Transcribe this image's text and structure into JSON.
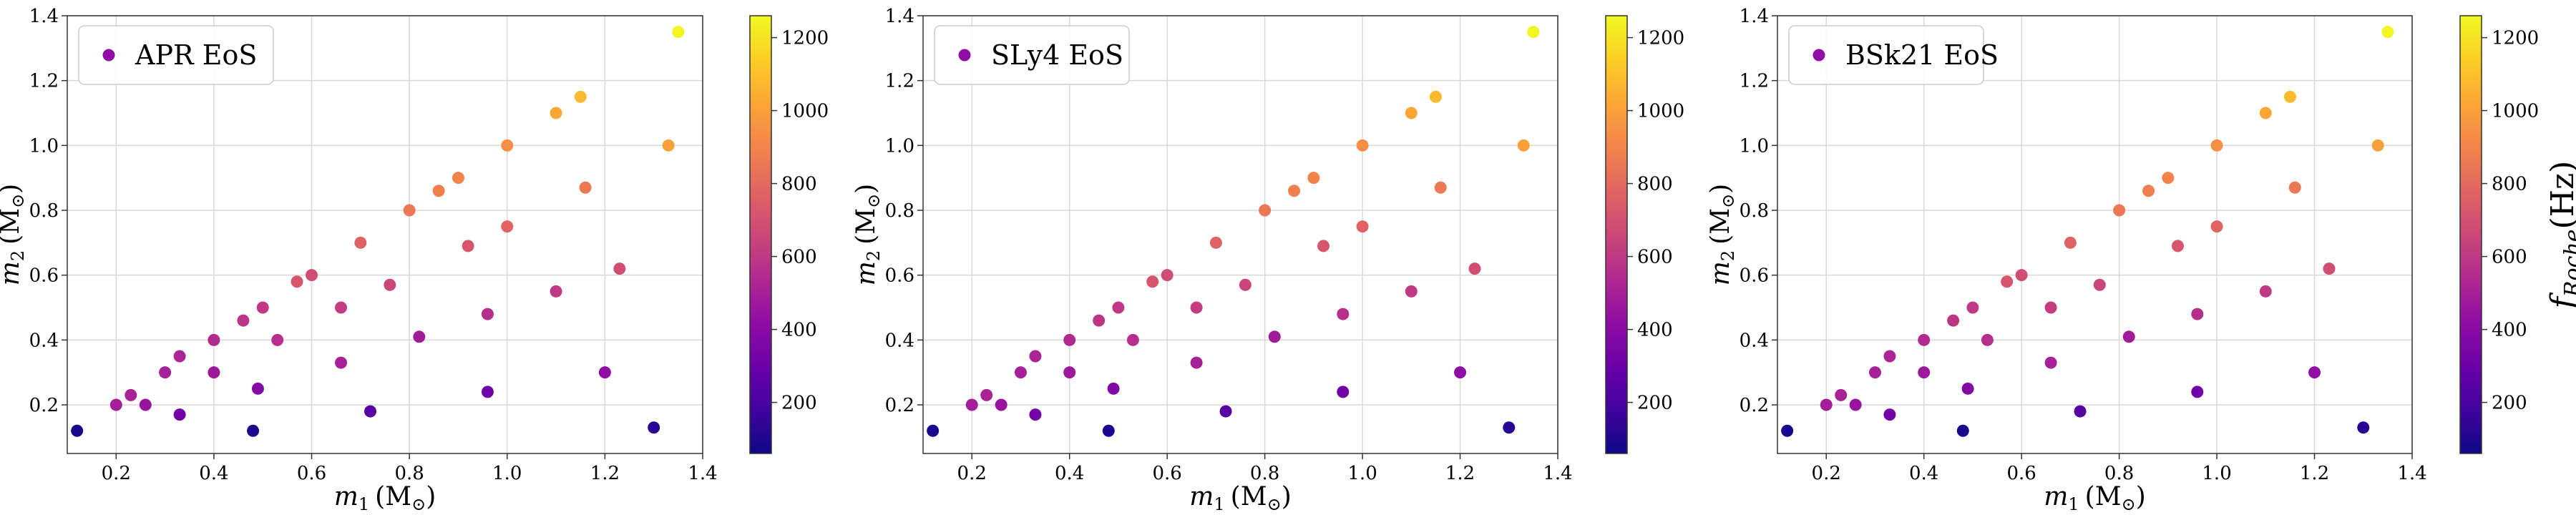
{
  "chart_data": [
    {
      "type": "scatter",
      "legend": "APR EoS",
      "legend_position": "upper left",
      "xlabel_var": "m",
      "xlabel_sub": "1",
      "xlabel_unit": "(M",
      "xlabel_unit_sub": "⊙",
      "xlabel_unit_close": ")",
      "ylabel_var": "m",
      "ylabel_sub": "2",
      "ylabel_unit": "(M",
      "ylabel_unit_sub": "⊙",
      "ylabel_unit_close": ")",
      "xlim": [
        0.1,
        1.4
      ],
      "ylim": [
        0.05,
        1.4
      ],
      "xticks": [
        "0.2",
        "0.4",
        "0.6",
        "0.8",
        "1.0",
        "1.2",
        "1.4"
      ],
      "yticks": [
        "0.2",
        "0.4",
        "0.6",
        "0.8",
        "1.0",
        "1.2",
        "1.4"
      ],
      "grid": true,
      "colormap": "plasma",
      "colorbar_range": [
        60,
        1260
      ],
      "colorbar_ticks": [
        "200",
        "400",
        "600",
        "800",
        "1000",
        "1200"
      ],
      "colorbar_label": "",
      "points": [
        {
          "m1": 0.12,
          "m2": 0.12,
          "f": 85
        },
        {
          "m1": 0.2,
          "m2": 0.2,
          "f": 490
        },
        {
          "m1": 0.23,
          "m2": 0.23,
          "f": 510
        },
        {
          "m1": 0.26,
          "m2": 0.2,
          "f": 450
        },
        {
          "m1": 0.3,
          "m2": 0.3,
          "f": 500
        },
        {
          "m1": 0.33,
          "m2": 0.35,
          "f": 520
        },
        {
          "m1": 0.33,
          "m2": 0.17,
          "f": 330
        },
        {
          "m1": 0.4,
          "m2": 0.4,
          "f": 540
        },
        {
          "m1": 0.4,
          "m2": 0.3,
          "f": 470
        },
        {
          "m1": 0.46,
          "m2": 0.46,
          "f": 590
        },
        {
          "m1": 0.48,
          "m2": 0.12,
          "f": 90
        },
        {
          "m1": 0.49,
          "m2": 0.25,
          "f": 380
        },
        {
          "m1": 0.5,
          "m2": 0.5,
          "f": 600
        },
        {
          "m1": 0.53,
          "m2": 0.4,
          "f": 560
        },
        {
          "m1": 0.57,
          "m2": 0.58,
          "f": 720
        },
        {
          "m1": 0.6,
          "m2": 0.6,
          "f": 690
        },
        {
          "m1": 0.66,
          "m2": 0.33,
          "f": 500
        },
        {
          "m1": 0.66,
          "m2": 0.5,
          "f": 620
        },
        {
          "m1": 0.7,
          "m2": 0.7,
          "f": 770
        },
        {
          "m1": 0.72,
          "m2": 0.18,
          "f": 250
        },
        {
          "m1": 0.76,
          "m2": 0.57,
          "f": 650
        },
        {
          "m1": 0.8,
          "m2": 0.8,
          "f": 850
        },
        {
          "m1": 0.82,
          "m2": 0.41,
          "f": 480
        },
        {
          "m1": 0.86,
          "m2": 0.86,
          "f": 880
        },
        {
          "m1": 0.9,
          "m2": 0.9,
          "f": 900
        },
        {
          "m1": 0.92,
          "m2": 0.69,
          "f": 720
        },
        {
          "m1": 0.96,
          "m2": 0.24,
          "f": 320
        },
        {
          "m1": 0.96,
          "m2": 0.48,
          "f": 560
        },
        {
          "m1": 1.0,
          "m2": 1.0,
          "f": 940
        },
        {
          "m1": 1.0,
          "m2": 0.75,
          "f": 780
        },
        {
          "m1": 1.1,
          "m2": 0.55,
          "f": 600
        },
        {
          "m1": 1.1,
          "m2": 1.1,
          "f": 1020
        },
        {
          "m1": 1.15,
          "m2": 1.15,
          "f": 1080
        },
        {
          "m1": 1.16,
          "m2": 0.87,
          "f": 860
        },
        {
          "m1": 1.2,
          "m2": 0.3,
          "f": 420
        },
        {
          "m1": 1.23,
          "m2": 0.62,
          "f": 690
        },
        {
          "m1": 1.3,
          "m2": 0.13,
          "f": 120
        },
        {
          "m1": 1.33,
          "m2": 1.0,
          "f": 1000
        },
        {
          "m1": 1.35,
          "m2": 1.35,
          "f": 1250
        }
      ]
    },
    {
      "type": "scatter",
      "legend": "SLy4 EoS",
      "legend_position": "upper left",
      "xlabel_var": "m",
      "xlabel_sub": "1",
      "xlabel_unit": "(M",
      "xlabel_unit_sub": "⊙",
      "xlabel_unit_close": ")",
      "ylabel_var": "m",
      "ylabel_sub": "2",
      "ylabel_unit": "(M",
      "ylabel_unit_sub": "⊙",
      "ylabel_unit_close": ")",
      "xlim": [
        0.1,
        1.4
      ],
      "ylim": [
        0.05,
        1.4
      ],
      "xticks": [
        "0.2",
        "0.4",
        "0.6",
        "0.8",
        "1.0",
        "1.2",
        "1.4"
      ],
      "yticks": [
        "0.2",
        "0.4",
        "0.6",
        "0.8",
        "1.0",
        "1.2",
        "1.4"
      ],
      "grid": true,
      "colormap": "plasma",
      "colorbar_range": [
        60,
        1260
      ],
      "colorbar_ticks": [
        "200",
        "400",
        "600",
        "800",
        "1000",
        "1200"
      ],
      "colorbar_label": "",
      "points": [
        {
          "m1": 0.12,
          "m2": 0.12,
          "f": 85
        },
        {
          "m1": 0.2,
          "m2": 0.2,
          "f": 490
        },
        {
          "m1": 0.23,
          "m2": 0.23,
          "f": 510
        },
        {
          "m1": 0.26,
          "m2": 0.2,
          "f": 450
        },
        {
          "m1": 0.3,
          "m2": 0.3,
          "f": 500
        },
        {
          "m1": 0.33,
          "m2": 0.35,
          "f": 520
        },
        {
          "m1": 0.33,
          "m2": 0.17,
          "f": 330
        },
        {
          "m1": 0.4,
          "m2": 0.4,
          "f": 540
        },
        {
          "m1": 0.4,
          "m2": 0.3,
          "f": 470
        },
        {
          "m1": 0.46,
          "m2": 0.46,
          "f": 590
        },
        {
          "m1": 0.48,
          "m2": 0.12,
          "f": 90
        },
        {
          "m1": 0.49,
          "m2": 0.25,
          "f": 380
        },
        {
          "m1": 0.5,
          "m2": 0.5,
          "f": 600
        },
        {
          "m1": 0.53,
          "m2": 0.4,
          "f": 560
        },
        {
          "m1": 0.57,
          "m2": 0.58,
          "f": 720
        },
        {
          "m1": 0.6,
          "m2": 0.6,
          "f": 690
        },
        {
          "m1": 0.66,
          "m2": 0.33,
          "f": 500
        },
        {
          "m1": 0.66,
          "m2": 0.5,
          "f": 620
        },
        {
          "m1": 0.7,
          "m2": 0.7,
          "f": 770
        },
        {
          "m1": 0.72,
          "m2": 0.18,
          "f": 250
        },
        {
          "m1": 0.76,
          "m2": 0.57,
          "f": 650
        },
        {
          "m1": 0.8,
          "m2": 0.8,
          "f": 850
        },
        {
          "m1": 0.82,
          "m2": 0.41,
          "f": 480
        },
        {
          "m1": 0.86,
          "m2": 0.86,
          "f": 880
        },
        {
          "m1": 0.9,
          "m2": 0.9,
          "f": 900
        },
        {
          "m1": 0.92,
          "m2": 0.69,
          "f": 720
        },
        {
          "m1": 0.96,
          "m2": 0.24,
          "f": 320
        },
        {
          "m1": 0.96,
          "m2": 0.48,
          "f": 560
        },
        {
          "m1": 1.0,
          "m2": 1.0,
          "f": 940
        },
        {
          "m1": 1.0,
          "m2": 0.75,
          "f": 780
        },
        {
          "m1": 1.1,
          "m2": 0.55,
          "f": 600
        },
        {
          "m1": 1.1,
          "m2": 1.1,
          "f": 1020
        },
        {
          "m1": 1.15,
          "m2": 1.15,
          "f": 1080
        },
        {
          "m1": 1.16,
          "m2": 0.87,
          "f": 860
        },
        {
          "m1": 1.2,
          "m2": 0.3,
          "f": 420
        },
        {
          "m1": 1.23,
          "m2": 0.62,
          "f": 690
        },
        {
          "m1": 1.3,
          "m2": 0.13,
          "f": 120
        },
        {
          "m1": 1.33,
          "m2": 1.0,
          "f": 1000
        },
        {
          "m1": 1.35,
          "m2": 1.35,
          "f": 1250
        }
      ]
    },
    {
      "type": "scatter",
      "legend": "BSk21 EoS",
      "legend_position": "upper left",
      "xlabel_var": "m",
      "xlabel_sub": "1",
      "xlabel_unit": "(M",
      "xlabel_unit_sub": "⊙",
      "xlabel_unit_close": ")",
      "ylabel_var": "m",
      "ylabel_sub": "2",
      "ylabel_unit": "(M",
      "ylabel_unit_sub": "⊙",
      "ylabel_unit_close": ")",
      "xlim": [
        0.1,
        1.4
      ],
      "ylim": [
        0.05,
        1.4
      ],
      "xticks": [
        "0.2",
        "0.4",
        "0.6",
        "0.8",
        "1.0",
        "1.2",
        "1.4"
      ],
      "yticks": [
        "0.2",
        "0.4",
        "0.6",
        "0.8",
        "1.0",
        "1.2",
        "1.4"
      ],
      "grid": true,
      "colormap": "plasma",
      "colorbar_range": [
        60,
        1260
      ],
      "colorbar_ticks": [
        "200",
        "400",
        "600",
        "800",
        "1000",
        "1200"
      ],
      "colorbar_label": "f",
      "colorbar_label_sub": "Roche",
      "colorbar_label_unit": "(Hz)",
      "points": [
        {
          "m1": 0.12,
          "m2": 0.12,
          "f": 85
        },
        {
          "m1": 0.2,
          "m2": 0.2,
          "f": 490
        },
        {
          "m1": 0.23,
          "m2": 0.23,
          "f": 510
        },
        {
          "m1": 0.26,
          "m2": 0.2,
          "f": 450
        },
        {
          "m1": 0.3,
          "m2": 0.3,
          "f": 500
        },
        {
          "m1": 0.33,
          "m2": 0.35,
          "f": 520
        },
        {
          "m1": 0.33,
          "m2": 0.17,
          "f": 330
        },
        {
          "m1": 0.4,
          "m2": 0.4,
          "f": 540
        },
        {
          "m1": 0.4,
          "m2": 0.3,
          "f": 470
        },
        {
          "m1": 0.46,
          "m2": 0.46,
          "f": 590
        },
        {
          "m1": 0.48,
          "m2": 0.12,
          "f": 90
        },
        {
          "m1": 0.49,
          "m2": 0.25,
          "f": 380
        },
        {
          "m1": 0.5,
          "m2": 0.5,
          "f": 600
        },
        {
          "m1": 0.53,
          "m2": 0.4,
          "f": 560
        },
        {
          "m1": 0.57,
          "m2": 0.58,
          "f": 720
        },
        {
          "m1": 0.6,
          "m2": 0.6,
          "f": 690
        },
        {
          "m1": 0.66,
          "m2": 0.33,
          "f": 500
        },
        {
          "m1": 0.66,
          "m2": 0.5,
          "f": 620
        },
        {
          "m1": 0.7,
          "m2": 0.7,
          "f": 770
        },
        {
          "m1": 0.72,
          "m2": 0.18,
          "f": 250
        },
        {
          "m1": 0.76,
          "m2": 0.57,
          "f": 650
        },
        {
          "m1": 0.8,
          "m2": 0.8,
          "f": 850
        },
        {
          "m1": 0.82,
          "m2": 0.41,
          "f": 480
        },
        {
          "m1": 0.86,
          "m2": 0.86,
          "f": 880
        },
        {
          "m1": 0.9,
          "m2": 0.9,
          "f": 900
        },
        {
          "m1": 0.92,
          "m2": 0.69,
          "f": 720
        },
        {
          "m1": 0.96,
          "m2": 0.24,
          "f": 320
        },
        {
          "m1": 0.96,
          "m2": 0.48,
          "f": 560
        },
        {
          "m1": 1.0,
          "m2": 1.0,
          "f": 940
        },
        {
          "m1": 1.0,
          "m2": 0.75,
          "f": 780
        },
        {
          "m1": 1.1,
          "m2": 0.55,
          "f": 600
        },
        {
          "m1": 1.1,
          "m2": 1.1,
          "f": 1020
        },
        {
          "m1": 1.15,
          "m2": 1.15,
          "f": 1080
        },
        {
          "m1": 1.16,
          "m2": 0.87,
          "f": 860
        },
        {
          "m1": 1.2,
          "m2": 0.3,
          "f": 420
        },
        {
          "m1": 1.23,
          "m2": 0.62,
          "f": 690
        },
        {
          "m1": 1.3,
          "m2": 0.13,
          "f": 120
        },
        {
          "m1": 1.33,
          "m2": 1.0,
          "f": 1000
        },
        {
          "m1": 1.35,
          "m2": 1.35,
          "f": 1250
        }
      ]
    }
  ]
}
